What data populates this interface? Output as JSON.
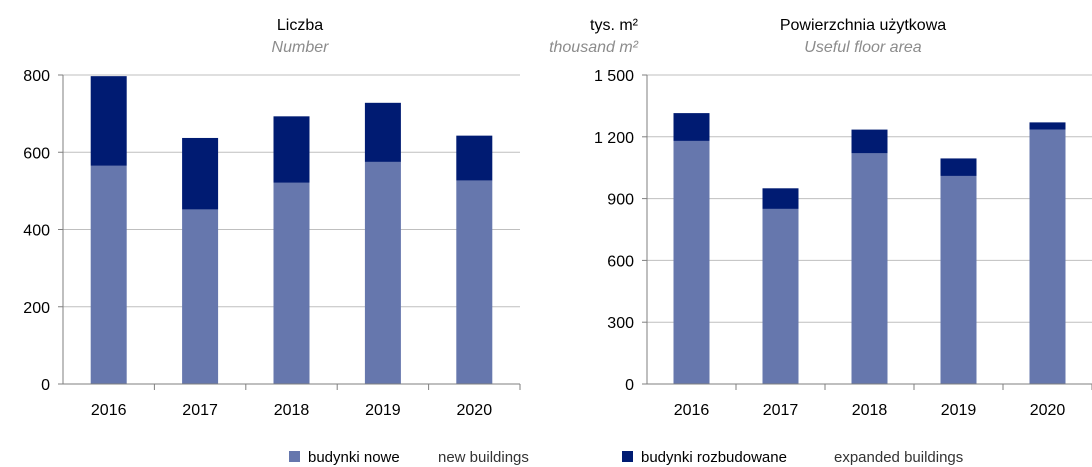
{
  "chart_data": [
    {
      "type": "bar",
      "stacked": true,
      "title": "Liczba",
      "subtitle": "Number",
      "unit": "",
      "unit_en": "",
      "categories": [
        "2016",
        "2017",
        "2018",
        "2019",
        "2020"
      ],
      "series": [
        {
          "name": "budynki nowe",
          "values": [
            565,
            452,
            521,
            575,
            527
          ]
        },
        {
          "name": "budynki rozbudowane",
          "values": [
            232,
            185,
            172,
            153,
            116
          ]
        }
      ],
      "ylim": [
        0,
        800
      ],
      "yticks": [
        0,
        200,
        400,
        600,
        800
      ],
      "ytick_labels": [
        "0",
        "200",
        "400",
        "600",
        "800"
      ],
      "grid": true
    },
    {
      "type": "bar",
      "stacked": true,
      "title": "Powierzchnia użytkowa",
      "subtitle": "Useful floor area",
      "unit": "tys. m²",
      "unit_en": "thousand m²",
      "categories": [
        "2016",
        "2017",
        "2018",
        "2019",
        "2020"
      ],
      "series": [
        {
          "name": "budynki nowe",
          "values": [
            1180,
            850,
            1120,
            1010,
            1235
          ]
        },
        {
          "name": "budynki rozbudowane",
          "values": [
            135,
            100,
            115,
            85,
            35
          ]
        }
      ],
      "ylim": [
        0,
        1500
      ],
      "yticks": [
        0,
        300,
        600,
        900,
        1200,
        1500
      ],
      "ytick_labels": [
        "0",
        "300",
        "600",
        "900",
        "1 200",
        "1 500"
      ],
      "grid": true
    }
  ],
  "legend": {
    "placement": "bottom",
    "items": [
      {
        "label": "budynki nowe",
        "label_en": "new buildings",
        "color": "#6677ad"
      },
      {
        "label": "budynki rozbudowane",
        "label_en": "expanded buildings",
        "color": "#001b72"
      }
    ]
  },
  "colors": {
    "new": "#6677ad",
    "expanded": "#001b72",
    "grid": "#bfbfbf",
    "axis": "#7f7f7f"
  }
}
